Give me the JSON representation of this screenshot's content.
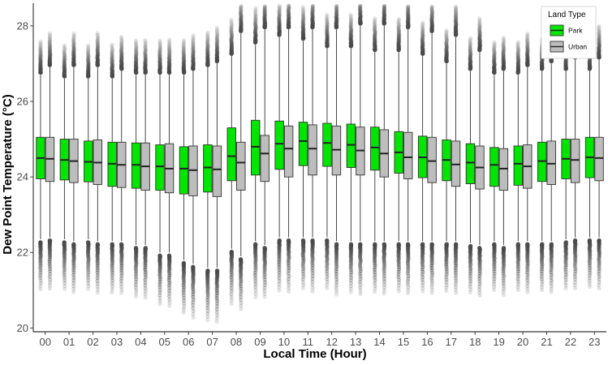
{
  "chart_data": {
    "type": "boxplot",
    "xlabel": "Local Time (Hour)",
    "ylabel": "Dew Point Temperature (°C)",
    "ylim": [
      19.9,
      28.6
    ],
    "yticks": [
      20,
      22,
      24,
      26,
      28
    ],
    "grid": false,
    "legend": {
      "title": "Land Type",
      "placement": "top-right",
      "entries": [
        {
          "name": "Park",
          "color": "#00e600"
        },
        {
          "name": "Urban",
          "color": "#bdbdbd"
        }
      ]
    },
    "categories": [
      "00",
      "01",
      "02",
      "03",
      "04",
      "05",
      "06",
      "07",
      "08",
      "09",
      "10",
      "11",
      "12",
      "13",
      "14",
      "15",
      "16",
      "17",
      "18",
      "19",
      "20",
      "21",
      "22",
      "23"
    ],
    "series": [
      {
        "name": "Park",
        "color": "#00e600",
        "q1": [
          23.95,
          23.92,
          23.87,
          23.75,
          23.7,
          23.65,
          23.55,
          23.6,
          23.9,
          24.05,
          24.2,
          24.3,
          24.28,
          24.25,
          24.18,
          24.1,
          23.98,
          23.9,
          23.82,
          23.75,
          23.78,
          23.88,
          23.95,
          23.98
        ],
        "median": [
          24.5,
          24.45,
          24.4,
          24.35,
          24.32,
          24.28,
          24.22,
          24.25,
          24.55,
          24.8,
          24.88,
          24.95,
          24.9,
          24.85,
          24.78,
          24.65,
          24.52,
          24.45,
          24.38,
          24.32,
          24.35,
          24.42,
          24.48,
          24.52
        ],
        "q3": [
          25.05,
          25.0,
          24.95,
          24.92,
          24.9,
          24.85,
          24.8,
          24.85,
          25.3,
          25.5,
          25.48,
          25.45,
          25.42,
          25.4,
          25.32,
          25.2,
          25.08,
          24.98,
          24.88,
          24.78,
          24.82,
          24.92,
          25.0,
          25.05
        ],
        "whisker_low": [
          22.35,
          22.35,
          22.35,
          22.3,
          22.2,
          22.0,
          21.8,
          21.6,
          22.1,
          22.3,
          22.4,
          22.4,
          22.4,
          22.3,
          22.3,
          22.3,
          22.3,
          22.3,
          22.25,
          22.3,
          22.3,
          22.3,
          22.35,
          22.4
        ],
        "whisker_high": [
          26.7,
          26.6,
          26.6,
          26.6,
          26.7,
          26.7,
          26.7,
          26.9,
          27.2,
          27.5,
          27.7,
          27.6,
          27.4,
          27.4,
          27.3,
          27.3,
          27.2,
          27.0,
          26.8,
          26.7,
          26.7,
          26.8,
          26.8,
          26.8
        ]
      },
      {
        "name": "Urban",
        "color": "#bdbdbd",
        "q1": [
          23.88,
          23.85,
          23.8,
          23.72,
          23.65,
          23.58,
          23.5,
          23.48,
          23.65,
          23.88,
          24.0,
          24.05,
          24.05,
          24.05,
          24.0,
          23.95,
          23.85,
          23.75,
          23.68,
          23.65,
          23.7,
          23.8,
          23.85,
          23.9
        ],
        "median": [
          24.48,
          24.42,
          24.38,
          24.32,
          24.28,
          24.22,
          24.18,
          24.2,
          24.38,
          24.62,
          24.75,
          24.75,
          24.72,
          24.7,
          24.62,
          24.52,
          24.42,
          24.33,
          24.25,
          24.22,
          24.28,
          24.35,
          24.45,
          24.5
        ],
        "q3": [
          25.05,
          25.0,
          24.98,
          24.92,
          24.9,
          24.88,
          24.82,
          24.82,
          24.92,
          25.1,
          25.35,
          25.38,
          25.35,
          25.32,
          25.25,
          25.18,
          25.05,
          24.95,
          24.82,
          24.75,
          24.85,
          24.95,
          25.0,
          25.05
        ],
        "whisker_low": [
          22.4,
          22.3,
          22.3,
          22.3,
          22.2,
          22.0,
          21.7,
          21.6,
          21.9,
          22.2,
          22.4,
          22.4,
          22.3,
          22.3,
          22.3,
          22.3,
          22.3,
          22.3,
          22.2,
          22.2,
          22.3,
          22.3,
          22.4,
          22.4
        ],
        "whisker_high": [
          26.9,
          26.9,
          26.9,
          26.8,
          26.7,
          26.7,
          26.8,
          27.0,
          27.8,
          27.9,
          27.9,
          27.9,
          27.9,
          28.0,
          28.0,
          27.9,
          27.8,
          27.7,
          27.3,
          26.8,
          26.9,
          27.0,
          27.1,
          27.1
        ]
      }
    ]
  }
}
